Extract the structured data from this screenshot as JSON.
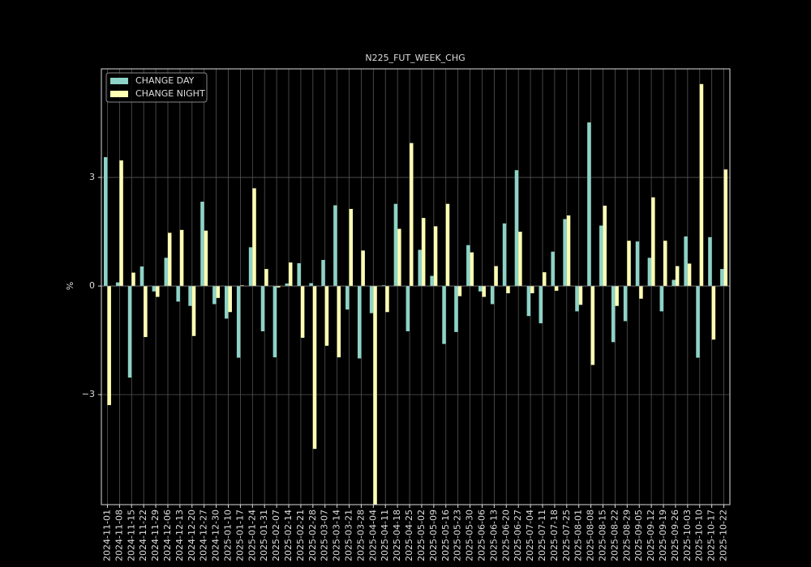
{
  "chart_data": {
    "type": "bar",
    "title": "N225_FUT_WEEK_CHG",
    "y_label": "%",
    "categories": [
      "2024-11-01",
      "2024-11-08",
      "2024-11-15",
      "2024-11-22",
      "2024-11-29",
      "2024-12-06",
      "2024-12-13",
      "2024-12-20",
      "2024-12-27",
      "2024-12-30",
      "2025-01-10",
      "2025-01-17",
      "2025-01-24",
      "2025-01-31",
      "2025-02-07",
      "2025-02-14",
      "2025-02-21",
      "2025-02-28",
      "2025-03-07",
      "2025-03-14",
      "2025-03-21",
      "2025-03-28",
      "2025-04-04",
      "2025-04-11",
      "2025-04-18",
      "2025-04-25",
      "2025-05-02",
      "2025-05-09",
      "2025-05-16",
      "2025-05-23",
      "2025-05-30",
      "2025-06-06",
      "2025-06-13",
      "2025-06-20",
      "2025-06-27",
      "2025-07-04",
      "2025-07-11",
      "2025-07-18",
      "2025-07-25",
      "2025-08-01",
      "2025-08-08",
      "2025-08-15",
      "2025-08-22",
      "2025-08-29",
      "2025-09-05",
      "2025-09-12",
      "2025-09-19",
      "2025-09-26",
      "2025-10-03",
      "2025-10-10",
      "2025-10-17",
      "2025-10-22"
    ],
    "series": [
      {
        "name": "CHANGE DAY",
        "color": "#8dd3c7",
        "values": [
          3.56,
          0.1,
          -2.53,
          0.54,
          -0.15,
          0.78,
          -0.43,
          -0.55,
          2.33,
          -0.5,
          -0.9,
          -1.98,
          1.07,
          -1.25,
          -1.97,
          0.07,
          0.63,
          0.08,
          0.72,
          2.23,
          -0.65,
          -2.0,
          -0.75,
          0.02,
          2.27,
          -1.25,
          1.0,
          0.28,
          -1.6,
          -1.27,
          1.13,
          -0.15,
          -0.5,
          1.73,
          3.2,
          -0.83,
          -1.03,
          0.95,
          1.85,
          -0.7,
          4.52,
          1.67,
          -1.55,
          -0.97,
          1.23,
          0.78,
          -0.7,
          0.17,
          1.37,
          -1.98,
          1.35,
          0.47
        ]
      },
      {
        "name": "CHANGE NIGHT",
        "color": "#ffffb3",
        "values": [
          -3.29,
          3.47,
          0.37,
          -1.41,
          -0.3,
          1.47,
          1.55,
          -1.38,
          1.53,
          -0.33,
          -0.72,
          0.02,
          2.7,
          0.47,
          -0.04,
          0.65,
          -1.43,
          -4.5,
          -1.65,
          -1.97,
          2.13,
          0.98,
          -6.04,
          -0.72,
          1.58,
          3.95,
          1.88,
          1.65,
          2.27,
          -0.28,
          0.93,
          -0.3,
          0.55,
          -0.2,
          1.5,
          -0.2,
          0.38,
          -0.13,
          1.95,
          -0.52,
          -2.18,
          2.22,
          -0.55,
          1.25,
          -0.35,
          2.45,
          1.25,
          0.55,
          0.62,
          5.58,
          -1.48,
          3.22
        ]
      }
    ],
    "ylim": [
      -6.04,
      6.0
    ],
    "yticks": [
      {
        "value": -3,
        "label": "−3"
      },
      0,
      3
    ],
    "grid": true,
    "legend": "upper left"
  }
}
